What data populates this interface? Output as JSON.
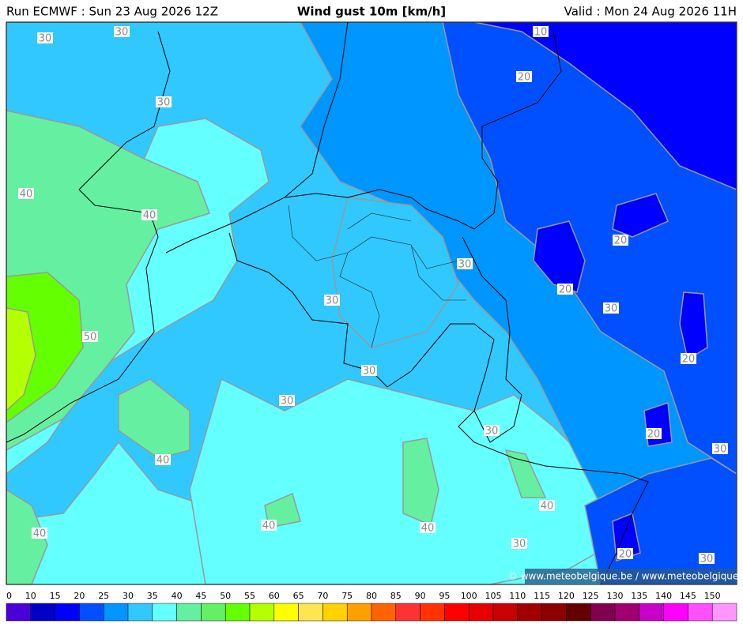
{
  "header": {
    "run": "Run ECMWF : Sun 23 Aug 2026 12Z",
    "title": "Wind gust 10m [km/h]",
    "valid": "Valid : Mon 24 Aug 2026 11H"
  },
  "map": {
    "contour_labels": [
      30,
      30,
      10,
      20,
      30,
      40,
      40,
      20,
      30,
      20,
      30,
      30,
      50,
      20,
      30,
      30,
      20,
      30,
      40,
      30,
      40,
      40,
      40,
      40,
      30,
      20,
      30
    ],
    "credit": "© www.meteobelgique.be / www.meteobelgique.be"
  },
  "legend": {
    "ticks": [
      0,
      10,
      15,
      20,
      25,
      30,
      35,
      40,
      45,
      50,
      55,
      60,
      65,
      70,
      75,
      80,
      85,
      90,
      95,
      100,
      105,
      110,
      115,
      120,
      125,
      130,
      135,
      140,
      145,
      150
    ],
    "colors": [
      "#4a00d8",
      "#0000c8",
      "#0000ff",
      "#0050ff",
      "#0096ff",
      "#30c8ff",
      "#64ffff",
      "#64f0a0",
      "#64f064",
      "#64ff00",
      "#b4ff00",
      "#ffff00",
      "#ffe650",
      "#ffd200",
      "#ffa000",
      "#ff6400",
      "#ff3232",
      "#ff3200",
      "#ff0000",
      "#e60000",
      "#c80000",
      "#a00000",
      "#8c0000",
      "#640000",
      "#820050",
      "#a0006e",
      "#c800c8",
      "#ff00ff",
      "#ff50ff",
      "#ff96ff"
    ]
  }
}
